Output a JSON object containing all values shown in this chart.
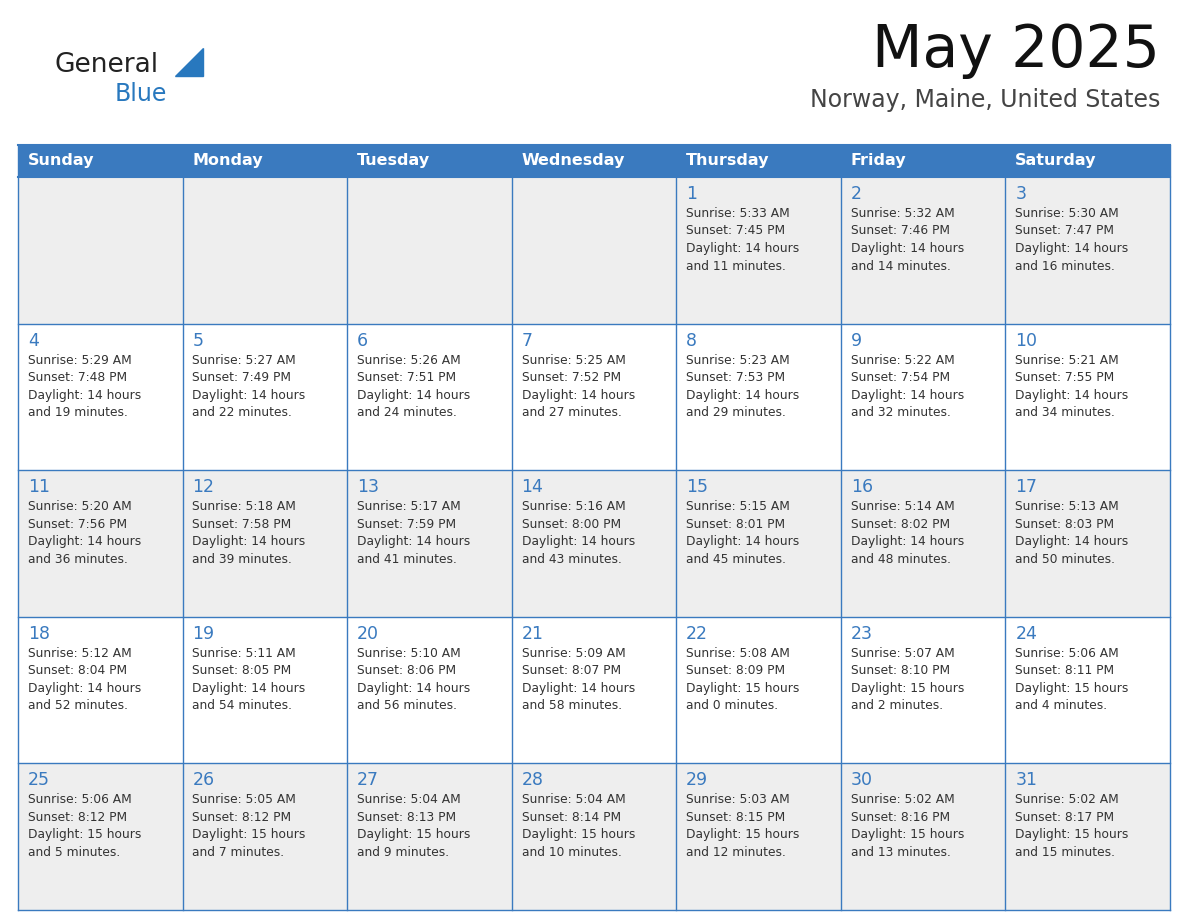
{
  "title": "May 2025",
  "subtitle": "Norway, Maine, United States",
  "days_of_week": [
    "Sunday",
    "Monday",
    "Tuesday",
    "Wednesday",
    "Thursday",
    "Friday",
    "Saturday"
  ],
  "header_bg": "#3a7abf",
  "header_text": "#ffffff",
  "cell_bg_light": "#eeeeee",
  "cell_bg_white": "#ffffff",
  "border_color": "#3a7abf",
  "day_number_color": "#3a7abf",
  "text_color": "#333333",
  "logo_general_color": "#222222",
  "logo_blue_color": "#2878be",
  "calendar_data": [
    [
      {
        "day": null,
        "sunrise": null,
        "sunset": null,
        "daylight": null
      },
      {
        "day": null,
        "sunrise": null,
        "sunset": null,
        "daylight": null
      },
      {
        "day": null,
        "sunrise": null,
        "sunset": null,
        "daylight": null
      },
      {
        "day": null,
        "sunrise": null,
        "sunset": null,
        "daylight": null
      },
      {
        "day": 1,
        "sunrise": "5:33 AM",
        "sunset": "7:45 PM",
        "daylight": "14 hours and 11 minutes"
      },
      {
        "day": 2,
        "sunrise": "5:32 AM",
        "sunset": "7:46 PM",
        "daylight": "14 hours and 14 minutes"
      },
      {
        "day": 3,
        "sunrise": "5:30 AM",
        "sunset": "7:47 PM",
        "daylight": "14 hours and 16 minutes"
      }
    ],
    [
      {
        "day": 4,
        "sunrise": "5:29 AM",
        "sunset": "7:48 PM",
        "daylight": "14 hours and 19 minutes"
      },
      {
        "day": 5,
        "sunrise": "5:27 AM",
        "sunset": "7:49 PM",
        "daylight": "14 hours and 22 minutes"
      },
      {
        "day": 6,
        "sunrise": "5:26 AM",
        "sunset": "7:51 PM",
        "daylight": "14 hours and 24 minutes"
      },
      {
        "day": 7,
        "sunrise": "5:25 AM",
        "sunset": "7:52 PM",
        "daylight": "14 hours and 27 minutes"
      },
      {
        "day": 8,
        "sunrise": "5:23 AM",
        "sunset": "7:53 PM",
        "daylight": "14 hours and 29 minutes"
      },
      {
        "day": 9,
        "sunrise": "5:22 AM",
        "sunset": "7:54 PM",
        "daylight": "14 hours and 32 minutes"
      },
      {
        "day": 10,
        "sunrise": "5:21 AM",
        "sunset": "7:55 PM",
        "daylight": "14 hours and 34 minutes"
      }
    ],
    [
      {
        "day": 11,
        "sunrise": "5:20 AM",
        "sunset": "7:56 PM",
        "daylight": "14 hours and 36 minutes"
      },
      {
        "day": 12,
        "sunrise": "5:18 AM",
        "sunset": "7:58 PM",
        "daylight": "14 hours and 39 minutes"
      },
      {
        "day": 13,
        "sunrise": "5:17 AM",
        "sunset": "7:59 PM",
        "daylight": "14 hours and 41 minutes"
      },
      {
        "day": 14,
        "sunrise": "5:16 AM",
        "sunset": "8:00 PM",
        "daylight": "14 hours and 43 minutes"
      },
      {
        "day": 15,
        "sunrise": "5:15 AM",
        "sunset": "8:01 PM",
        "daylight": "14 hours and 45 minutes"
      },
      {
        "day": 16,
        "sunrise": "5:14 AM",
        "sunset": "8:02 PM",
        "daylight": "14 hours and 48 minutes"
      },
      {
        "day": 17,
        "sunrise": "5:13 AM",
        "sunset": "8:03 PM",
        "daylight": "14 hours and 50 minutes"
      }
    ],
    [
      {
        "day": 18,
        "sunrise": "5:12 AM",
        "sunset": "8:04 PM",
        "daylight": "14 hours and 52 minutes"
      },
      {
        "day": 19,
        "sunrise": "5:11 AM",
        "sunset": "8:05 PM",
        "daylight": "14 hours and 54 minutes"
      },
      {
        "day": 20,
        "sunrise": "5:10 AM",
        "sunset": "8:06 PM",
        "daylight": "14 hours and 56 minutes"
      },
      {
        "day": 21,
        "sunrise": "5:09 AM",
        "sunset": "8:07 PM",
        "daylight": "14 hours and 58 minutes"
      },
      {
        "day": 22,
        "sunrise": "5:08 AM",
        "sunset": "8:09 PM",
        "daylight": "15 hours and 0 minutes"
      },
      {
        "day": 23,
        "sunrise": "5:07 AM",
        "sunset": "8:10 PM",
        "daylight": "15 hours and 2 minutes"
      },
      {
        "day": 24,
        "sunrise": "5:06 AM",
        "sunset": "8:11 PM",
        "daylight": "15 hours and 4 minutes"
      }
    ],
    [
      {
        "day": 25,
        "sunrise": "5:06 AM",
        "sunset": "8:12 PM",
        "daylight": "15 hours and 5 minutes"
      },
      {
        "day": 26,
        "sunrise": "5:05 AM",
        "sunset": "8:12 PM",
        "daylight": "15 hours and 7 minutes"
      },
      {
        "day": 27,
        "sunrise": "5:04 AM",
        "sunset": "8:13 PM",
        "daylight": "15 hours and 9 minutes"
      },
      {
        "day": 28,
        "sunrise": "5:04 AM",
        "sunset": "8:14 PM",
        "daylight": "15 hours and 10 minutes"
      },
      {
        "day": 29,
        "sunrise": "5:03 AM",
        "sunset": "8:15 PM",
        "daylight": "15 hours and 12 minutes"
      },
      {
        "day": 30,
        "sunrise": "5:02 AM",
        "sunset": "8:16 PM",
        "daylight": "15 hours and 13 minutes"
      },
      {
        "day": 31,
        "sunrise": "5:02 AM",
        "sunset": "8:17 PM",
        "daylight": "15 hours and 15 minutes"
      }
    ]
  ]
}
